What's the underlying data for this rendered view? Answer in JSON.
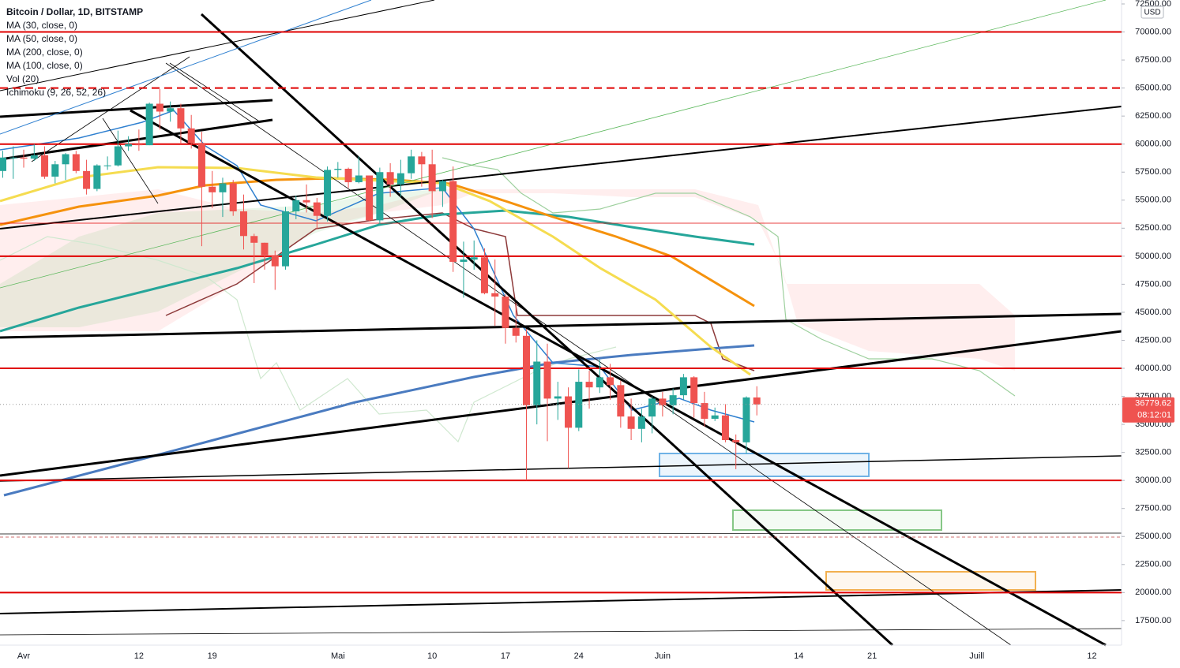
{
  "chart_data": {
    "type": "candlestick",
    "title": "Bitcoin / Dollar, 1D, BITSTAMP",
    "indicators": [
      "MA (30, close, 0)",
      "MA (50, close, 0)",
      "MA (200, close, 0)",
      "MA (100, close, 0)",
      "Vol (20)",
      "Ichimoku (9, 26, 52, 26)"
    ],
    "currency": "USD",
    "countdown": "08:12:01",
    "up_color": "#26a69a",
    "down_color": "#ef5350",
    "categories": [
      null,
      null,
      "Avr",
      null,
      null,
      null,
      null,
      null,
      null,
      null,
      null,
      null,
      null,
      "12",
      null,
      null,
      null,
      null,
      null,
      null,
      "19",
      null,
      null,
      null,
      null,
      null,
      null,
      null,
      null,
      null,
      null,
      null,
      "Mai",
      null,
      null,
      null,
      null,
      null,
      null,
      null,
      null,
      "10",
      null,
      null,
      null,
      null,
      null,
      null,
      "17",
      null,
      null,
      null,
      null,
      null,
      null,
      "24",
      null,
      null,
      null,
      null,
      null,
      null,
      null,
      "Juin",
      null,
      null,
      null,
      null,
      null,
      null,
      null,
      null,
      null,
      null,
      null,
      null,
      "14",
      null,
      null,
      null,
      null,
      null,
      null,
      "21",
      null,
      null,
      null,
      null,
      null,
      null,
      null,
      null,
      null,
      "Juill",
      null,
      null,
      null,
      null,
      null,
      null,
      null,
      null,
      null,
      null,
      "12",
      null,
      null
    ],
    "open": [
      57600,
      58800,
      58800,
      58700,
      59000,
      57100,
      58200,
      59100,
      57600,
      56000,
      58100,
      58100,
      59800,
      60000,
      59900,
      63600,
      62900,
      63200,
      61400,
      60100,
      56200,
      55700,
      56500,
      54000,
      51800,
      51200,
      50100,
      49100,
      54000,
      55000,
      54800,
      53600,
      57700,
      57800,
      56600,
      57200,
      53200,
      57500,
      56400,
      57400,
      58900,
      58200,
      55800,
      56700,
      49500,
      49700,
      49900,
      46700,
      46400,
      43600,
      42900,
      36700,
      40600,
      37300,
      37500,
      34700,
      38800,
      38300,
      39200,
      38500,
      35700,
      34600,
      35700,
      37300,
      36700,
      37600,
      39200,
      36900,
      35500,
      35800,
      33600,
      33400,
      37400,
      null,
      null,
      null,
      null,
      null,
      null,
      null,
      null,
      null,
      null,
      null,
      null,
      null,
      null,
      null,
      null,
      null,
      null,
      null,
      null,
      null,
      null,
      null,
      null,
      null,
      null,
      null,
      null,
      null,
      null,
      null,
      null,
      null,
      null
    ],
    "high": [
      59400,
      59800,
      59500,
      60000,
      59800,
      58500,
      59200,
      59400,
      58600,
      58200,
      58900,
      61200,
      60700,
      61300,
      63700,
      64900,
      63800,
      63600,
      62600,
      61100,
      57600,
      57000,
      56800,
      55500,
      52000,
      51200,
      50500,
      54400,
      55400,
      56400,
      55200,
      58000,
      58400,
      57900,
      58900,
      57200,
      57900,
      58300,
      58600,
      59500,
      59300,
      59500,
      56800,
      58000,
      51300,
      51400,
      50700,
      49700,
      46600,
      45800,
      43500,
      42500,
      42200,
      38800,
      38300,
      39900,
      39800,
      40800,
      40400,
      38900,
      37300,
      36400,
      37500,
      37900,
      38200,
      39500,
      39300,
      37900,
      36500,
      36800,
      34100,
      37500,
      38400,
      null,
      null,
      null,
      null,
      null,
      null,
      null,
      null,
      null,
      null,
      null,
      null,
      null,
      null,
      null,
      null,
      null,
      null,
      null,
      null,
      null,
      null,
      null,
      null,
      null,
      null,
      null,
      null,
      null,
      null,
      null,
      null,
      null,
      null
    ],
    "low": [
      57000,
      56900,
      57900,
      58500,
      56900,
      56500,
      56800,
      57400,
      55500,
      55800,
      57700,
      58000,
      59400,
      59400,
      59900,
      61300,
      62000,
      60000,
      59600,
      50900,
      54300,
      53500,
      53600,
      50600,
      47600,
      48800,
      47000,
      48800,
      53300,
      53900,
      52400,
      53100,
      57000,
      56100,
      56500,
      53100,
      52900,
      55300,
      55300,
      56900,
      56200,
      53400,
      54400,
      48600,
      46300,
      48800,
      46600,
      43800,
      42200,
      42300,
      30000,
      35000,
      33500,
      35400,
      31100,
      34400,
      36400,
      37800,
      37200,
      34700,
      33600,
      33400,
      34200,
      35700,
      35900,
      37200,
      35600,
      34800,
      35300,
      33400,
      31000,
      32400,
      35800,
      null,
      null,
      null,
      null,
      null,
      null,
      null,
      null,
      null,
      null,
      null,
      null,
      null,
      null,
      null,
      null,
      null,
      null,
      null,
      null,
      null,
      null,
      null,
      null,
      null,
      null,
      null,
      null,
      null,
      null,
      null,
      null,
      null,
      null
    ],
    "close": [
      58800,
      58800,
      58700,
      59000,
      57100,
      58200,
      59100,
      57600,
      56000,
      58100,
      58100,
      59800,
      60000,
      59900,
      63600,
      62900,
      63200,
      61400,
      60100,
      56200,
      55700,
      56500,
      54000,
      51800,
      51200,
      50100,
      49100,
      54000,
      55000,
      54800,
      53600,
      57700,
      57800,
      56600,
      57200,
      53200,
      57500,
      56400,
      57400,
      58900,
      58200,
      55800,
      56700,
      49500,
      49700,
      49900,
      46700,
      46400,
      43600,
      42900,
      36700,
      40600,
      37300,
      37500,
      34700,
      38800,
      38300,
      39200,
      38500,
      35700,
      34600,
      35700,
      37300,
      36700,
      37600,
      39200,
      36900,
      35500,
      35800,
      33600,
      33400,
      37400,
      36779.62,
      null,
      null,
      null,
      null,
      null,
      null,
      null,
      null,
      null,
      null,
      null,
      null,
      null,
      null,
      null,
      null,
      null,
      null,
      null,
      null,
      null,
      null,
      null,
      null,
      null,
      null,
      null,
      null,
      null,
      null,
      null,
      null,
      null,
      null
    ],
    "horizontal_lines": [
      {
        "value": 70000,
        "dashed": false
      },
      {
        "value": 65000,
        "dashed": true
      },
      {
        "value": 60000,
        "dashed": false
      },
      {
        "value": 50000,
        "dashed": false
      },
      {
        "value": 40000,
        "dashed": false
      },
      {
        "value": 30000,
        "dashed": false
      },
      {
        "value": 20000,
        "dashed": false
      }
    ],
    "horizontal_line_color": "#e00000",
    "ylim": [
      15310,
      72852
    ],
    "yticks": [
      {
        "value": 72500,
        "label": "72500.00"
      },
      {
        "value": 70000,
        "label": "70000.00"
      },
      {
        "value": 67500,
        "label": "67500.00"
      },
      {
        "value": 65000,
        "label": "65000.00"
      },
      {
        "value": 62500,
        "label": "62500.00"
      },
      {
        "value": 60000,
        "label": "60000.00"
      },
      {
        "value": 57500,
        "label": "57500.00"
      },
      {
        "value": 55000,
        "label": "55000.00"
      },
      {
        "value": 52500,
        "label": "52500.00"
      },
      {
        "value": 50000,
        "label": "50000.00"
      },
      {
        "value": 47500,
        "label": "47500.00"
      },
      {
        "value": 45000,
        "label": "45000.00"
      },
      {
        "value": 42500,
        "label": "42500.00"
      },
      {
        "value": 40000,
        "label": "40000.00"
      },
      {
        "value": 37500,
        "label": "37500.00"
      },
      {
        "value": 35000,
        "label": "35000.00"
      },
      {
        "value": 32500,
        "label": "32500.00"
      },
      {
        "value": 30000,
        "label": "30000.00"
      },
      {
        "value": 27500,
        "label": "27500.00"
      },
      {
        "value": 25000,
        "label": "25000.00"
      },
      {
        "value": 22500,
        "label": "22500.00"
      },
      {
        "value": 20000,
        "label": "20000.00"
      },
      {
        "value": 17500,
        "label": "17500.00"
      }
    ],
    "grid": false
  }
}
